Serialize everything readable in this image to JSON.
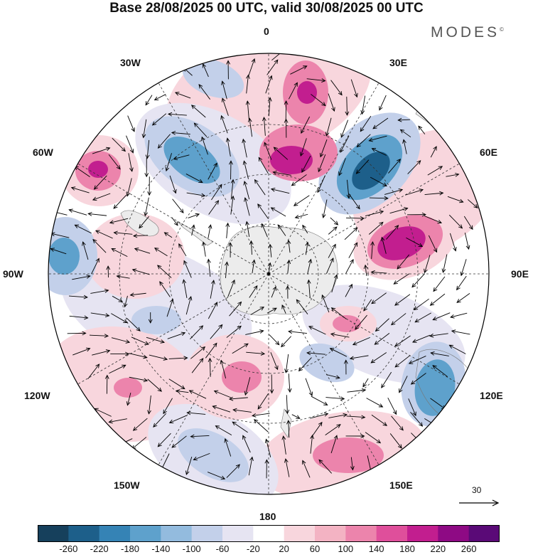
{
  "header": {
    "title": "Base 28/08/2025 00 UTC, valid 30/08/2025 00 UTC",
    "brand": "MODES",
    "brand_mark": "©"
  },
  "map": {
    "projection": "south-polar-stereographic",
    "longitude_labels": {
      "top": "0",
      "upper_left": "30W",
      "upper_right": "30E",
      "mid_upper_left": "60W",
      "mid_upper_right": "60E",
      "left": "90W",
      "right": "90E",
      "mid_lower_left": "120W",
      "mid_lower_right": "120E",
      "lower_left": "150W",
      "lower_right": "150E",
      "bottom": "180"
    },
    "reference_vector_label": "30"
  },
  "colorbar": {
    "tick_labels": [
      "-260",
      "-220",
      "-180",
      "-140",
      "-100",
      "-60",
      "-20",
      "20",
      "60",
      "100",
      "140",
      "180",
      "220",
      "260"
    ],
    "colors": [
      "#16405c",
      "#1d5f8a",
      "#3583b5",
      "#5ea1cc",
      "#93bbde",
      "#c3d0ea",
      "#e6e4f2",
      "#ffffff",
      "#f8d6dd",
      "#f3b3c3",
      "#ec84ac",
      "#df4f9b",
      "#c21e8f",
      "#8e0a84",
      "#5a0a77"
    ]
  },
  "field_colors": {
    "land": "#ececec",
    "strong_neg": "#1d5f8a",
    "mid_neg": "#5ea1cc",
    "weak_neg": "#c3d0ea",
    "faint_neg": "#e6e4f2",
    "weak_pos": "#f8d6dd",
    "mid_pos": "#ec84ac",
    "strong_pos": "#c21e8f"
  }
}
